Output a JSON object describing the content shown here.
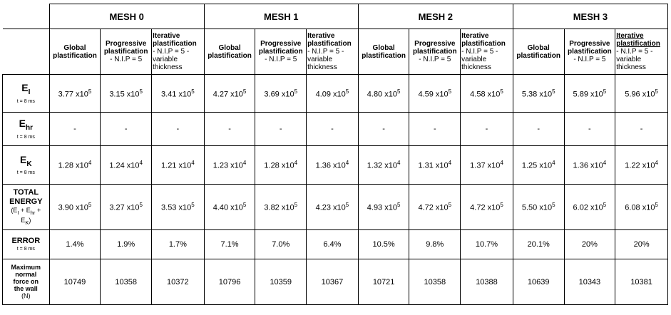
{
  "meshes": [
    "MESH 0",
    "MESH 1",
    "MESH 2",
    "MESH 3"
  ],
  "subheaders": {
    "global": "Global plastification",
    "progressive_title": "Progressive plastification",
    "progressive_detail": " -  N.I.P = 5",
    "iterative_title": "Iterative plastification",
    "iterative_detail": "- N.I.P = 5 - variable thickness"
  },
  "rows": {
    "ei": {
      "symbol": "E",
      "subscript": "I",
      "time": "t = 8 ms",
      "cells": [
        {
          "m": "3.77",
          "e": "5"
        },
        {
          "m": "3.15",
          "e": "5"
        },
        {
          "m": "3.41",
          "e": "5"
        },
        {
          "m": "4.27",
          "e": "5"
        },
        {
          "m": "3.69",
          "e": "5"
        },
        {
          "m": "4.09",
          "e": "5"
        },
        {
          "m": "4.80",
          "e": "5"
        },
        {
          "m": "4.59",
          "e": "5"
        },
        {
          "m": "4.58",
          "e": "5"
        },
        {
          "m": "5.38",
          "e": "5"
        },
        {
          "m": "5.89",
          "e": "5"
        },
        {
          "m": "5.96",
          "e": "5"
        }
      ]
    },
    "ehr": {
      "symbol": "E",
      "subscript": "hr",
      "time": "t = 8 ms",
      "cells": [
        "-",
        "-",
        "-",
        "-",
        "-",
        "-",
        "-",
        "-",
        "-",
        "-",
        "-",
        "-"
      ]
    },
    "ek": {
      "symbol": "E",
      "subscript": "K",
      "time": "t = 8 ms",
      "cells": [
        {
          "m": "1.28",
          "e": "4"
        },
        {
          "m": "1.24",
          "e": "4"
        },
        {
          "m": "1.21",
          "e": "4"
        },
        {
          "m": "1.23",
          "e": "4"
        },
        {
          "m": "1.28",
          "e": "4"
        },
        {
          "m": "1.36",
          "e": "4"
        },
        {
          "m": "1.32",
          "e": "4"
        },
        {
          "m": "1.31",
          "e": "4"
        },
        {
          "m": "1.37",
          "e": "4"
        },
        {
          "m": "1.25",
          "e": "4"
        },
        {
          "m": "1.36",
          "e": "4"
        },
        {
          "m": "1.22",
          "e": "4"
        }
      ]
    },
    "total": {
      "label_line1": "TOTAL",
      "label_line2": "ENERGY",
      "formula_a": "(E",
      "formula_a_sub": "I",
      "formula_b": " + E",
      "formula_b_sub": "hr",
      "formula_c": " +",
      "formula_d": "E",
      "formula_d_sub": "K",
      "formula_e": ")",
      "cells": [
        {
          "m": "3.90",
          "e": "5"
        },
        {
          "m": "3.27",
          "e": "5"
        },
        {
          "m": "3.53",
          "e": "5"
        },
        {
          "m": "4.40",
          "e": "5"
        },
        {
          "m": "3.82",
          "e": "5"
        },
        {
          "m": "4.23",
          "e": "5"
        },
        {
          "m": "4.93",
          "e": "5"
        },
        {
          "m": "4.72",
          "e": "5"
        },
        {
          "m": "4.72",
          "e": "5"
        },
        {
          "m": "5.50",
          "e": "5"
        },
        {
          "m": "6.02",
          "e": "5"
        },
        {
          "m": "6.08",
          "e": "5"
        }
      ]
    },
    "error": {
      "label": "ERROR",
      "time": "t = 8 ms",
      "cells": [
        "1.4%",
        "1.9%",
        "1.7%",
        "7.1%",
        "7.0%",
        "6.4%",
        "10.5%",
        "9.8%",
        "10.7%",
        "20.1%",
        "20%",
        "20%"
      ]
    },
    "force": {
      "label_lines": [
        "Maximum",
        "normal",
        "force on",
        "the wall"
      ],
      "unit": "(N)",
      "cells": [
        "10749",
        "10358",
        "10372",
        "10796",
        "10359",
        "10367",
        "10721",
        "10358",
        "10388",
        "10639",
        "10343",
        "10381"
      ]
    }
  },
  "times_sep": " x10"
}
